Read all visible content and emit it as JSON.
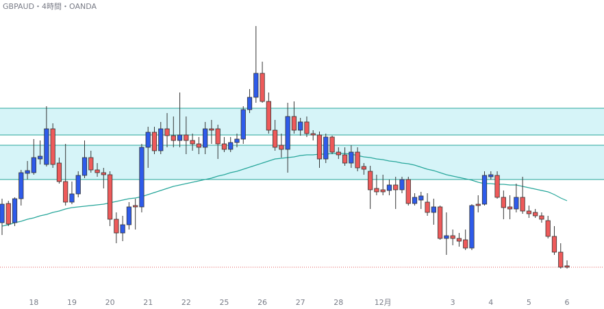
{
  "chart_data": {
    "type": "candlestick",
    "title": "GBPAUD・4時間・OANDA",
    "categories": [
      null,
      null,
      null,
      null,
      null,
      "18",
      null,
      null,
      null,
      null,
      null,
      "19",
      null,
      null,
      null,
      null,
      null,
      "20",
      null,
      null,
      null,
      null,
      null,
      "21",
      null,
      null,
      null,
      null,
      null,
      "22",
      null,
      null,
      null,
      null,
      null,
      "25",
      null,
      null,
      null,
      null,
      null,
      "26",
      null,
      null,
      null,
      null,
      null,
      "27",
      null,
      null,
      null,
      null,
      null,
      "28",
      null,
      null,
      null,
      null,
      null,
      null,
      "12月",
      null,
      null,
      null,
      null,
      null,
      null,
      null,
      null,
      null,
      null,
      "3",
      null,
      null,
      null,
      null,
      null,
      "4",
      null,
      null,
      null,
      null,
      null,
      "5",
      null,
      null,
      null,
      null,
      null,
      "6"
    ],
    "open": [
      95,
      123,
      95,
      130,
      167,
      168,
      188,
      180,
      232,
      182,
      155,
      125,
      137,
      164,
      190,
      172,
      168,
      165,
      100,
      80,
      92,
      120,
      118,
      205,
      227,
      200,
      232,
      222,
      215,
      223,
      215,
      210,
      205,
      232,
      232,
      210,
      202,
      212,
      217,
      260,
      278,
      313,
      272,
      230,
      208,
      202,
      250,
      230,
      242,
      225,
      223,
      188,
      220,
      198,
      194,
      182,
      198,
      177,
      170,
      145,
      143,
      142,
      150,
      143,
      158,
      123,
      128,
      125,
      110,
      118,
      72,
      76,
      72,
      70,
      58,
      122,
      122,
      162,
      164,
      132,
      118,
      115,
      132,
      112,
      110,
      105,
      98,
      75,
      52,
      32
    ],
    "high": [
      130,
      127,
      132,
      172,
      185,
      217,
      215,
      265,
      240,
      190,
      210,
      155,
      170,
      215,
      200,
      182,
      175,
      170,
      110,
      105,
      125,
      130,
      210,
      235,
      235,
      242,
      255,
      250,
      285,
      250,
      225,
      220,
      242,
      245,
      238,
      220,
      220,
      225,
      265,
      290,
      382,
      330,
      285,
      245,
      225,
      270,
      272,
      248,
      250,
      230,
      228,
      225,
      222,
      205,
      205,
      208,
      205,
      182,
      178,
      165,
      165,
      158,
      162,
      162,
      162,
      138,
      140,
      138,
      130,
      120,
      110,
      85,
      80,
      85,
      122,
      135,
      170,
      170,
      170,
      142,
      135,
      152,
      162,
      120,
      115,
      110,
      105,
      90,
      65,
      40
    ],
    "low": [
      77,
      90,
      90,
      120,
      158,
      165,
      180,
      177,
      175,
      152,
      120,
      122,
      132,
      160,
      168,
      162,
      145,
      90,
      65,
      68,
      85,
      85,
      110,
      175,
      195,
      195,
      205,
      205,
      205,
      195,
      200,
      195,
      195,
      210,
      188,
      198,
      198,
      205,
      210,
      255,
      270,
      270,
      225,
      200,
      190,
      168,
      225,
      222,
      220,
      215,
      175,
      182,
      195,
      188,
      178,
      175,
      170,
      165,
      115,
      135,
      135,
      135,
      115,
      138,
      120,
      120,
      115,
      105,
      92,
      70,
      48,
      62,
      60,
      55,
      55,
      110,
      120,
      158,
      130,
      100,
      100,
      110,
      108,
      102,
      102,
      95,
      72,
      48,
      28,
      28
    ],
    "close": [
      122,
      93,
      130,
      168,
      171,
      190,
      192,
      232,
      180,
      155,
      125,
      137,
      164,
      190,
      172,
      168,
      165,
      100,
      80,
      92,
      118,
      118,
      205,
      227,
      200,
      232,
      222,
      215,
      223,
      215,
      210,
      205,
      232,
      230,
      210,
      202,
      212,
      217,
      260,
      278,
      313,
      272,
      230,
      205,
      202,
      250,
      230,
      242,
      225,
      223,
      188,
      220,
      198,
      194,
      182,
      198,
      175,
      173,
      143,
      140,
      140,
      150,
      143,
      158,
      123,
      132,
      134,
      110,
      118,
      72,
      76,
      72,
      68,
      58,
      120,
      120,
      164,
      165,
      132,
      117,
      115,
      132,
      112,
      108,
      105,
      100,
      75,
      52,
      30,
      30
    ],
    "up_color": "#2e5bea",
    "down_color": "#ee5a5a",
    "ma": {
      "color": "#26a69a",
      "values": [
        90,
        92,
        95,
        97,
        100,
        102,
        105,
        107,
        110,
        112,
        115,
        117,
        118,
        119,
        120,
        121,
        122,
        124,
        126,
        128,
        130,
        131,
        133,
        136,
        139,
        142,
        145,
        148,
        150,
        152,
        154,
        156,
        158,
        160,
        163,
        165,
        168,
        170,
        173,
        176,
        179,
        182,
        185,
        188,
        189,
        190,
        191,
        193,
        194,
        194,
        195,
        195,
        196,
        196,
        196,
        195,
        193,
        191,
        190,
        188,
        187,
        185,
        184,
        182,
        181,
        179,
        176,
        173,
        171,
        168,
        165,
        163,
        161,
        159,
        157,
        154,
        152,
        152,
        151,
        151,
        150,
        150,
        148,
        146,
        144,
        142,
        140,
        136,
        131,
        127
      ]
    },
    "zones": [
      [
        223,
        262
      ],
      [
        158,
        208
      ]
    ],
    "zone_color": "#d6f4f8",
    "zone_line_color": "#26a69a",
    "price_line": 30,
    "price_line_color": "#e05a5a",
    "ylim": [
      0,
      420
    ]
  }
}
